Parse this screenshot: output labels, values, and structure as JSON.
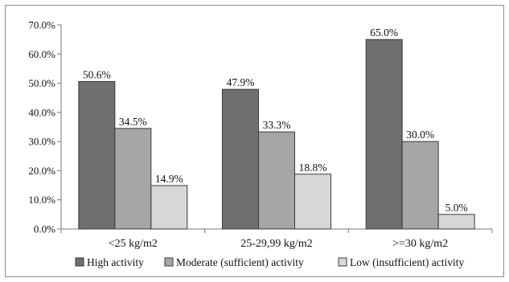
{
  "chart_data": {
    "type": "bar",
    "categories": [
      "<25 kg/m2",
      "25-29,99 kg/m2",
      ">=30 kg/m2"
    ],
    "series": [
      {
        "name": "High activity",
        "values": [
          50.6,
          47.9,
          65.0
        ],
        "labels": [
          "50.6%",
          "47.9%",
          "65.0%"
        ],
        "color": "#6f6f6f"
      },
      {
        "name": "Moderate (sufficient) activity",
        "values": [
          34.5,
          33.3,
          30.0
        ],
        "labels": [
          "34.5%",
          "33.3%",
          "30.0%"
        ],
        "color": "#a6a6a6"
      },
      {
        "name": "Low (insufficient) activity",
        "values": [
          14.9,
          18.8,
          5.0
        ],
        "labels": [
          "14.9%",
          "18.8%",
          "5.0%"
        ],
        "color": "#d7d7d7"
      }
    ],
    "yticks": [
      "0.0%",
      "10.0%",
      "20.0%",
      "30.0%",
      "40.0%",
      "50.0%",
      "60.0%",
      "70.0%"
    ],
    "ylim": [
      0,
      70
    ],
    "grid": false,
    "legend": "bottom"
  }
}
